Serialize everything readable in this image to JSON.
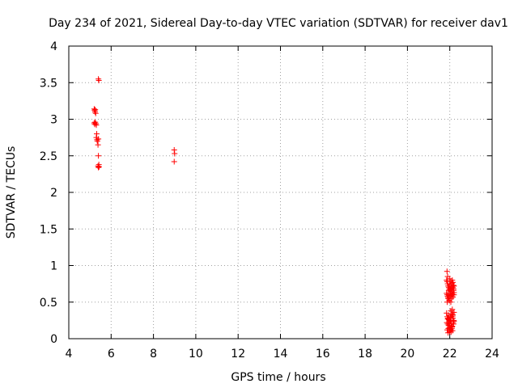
{
  "chart_data": {
    "type": "scatter",
    "title": "Day 234 of 2021, Sidereal Day-to-day VTEC variation (SDTVAR) for receiver dav1",
    "xlabel": "GPS time / hours",
    "ylabel": "SDTVAR / TECUs",
    "xlim": [
      4,
      24
    ],
    "ylim": [
      0,
      4
    ],
    "xticks": [
      4,
      6,
      8,
      10,
      12,
      14,
      16,
      18,
      20,
      22,
      24
    ],
    "yticks": [
      0,
      0.5,
      1,
      1.5,
      2,
      2.5,
      3,
      3.5,
      4
    ],
    "ytick_labels": [
      "0",
      "0.5",
      "1",
      "1.5",
      "2",
      "2.5",
      "3",
      "3.5",
      "4"
    ],
    "grid": true,
    "marker": "+",
    "color": "#ff0000",
    "series": [
      {
        "name": "dav1",
        "x": [
          5.2,
          5.22,
          5.24,
          5.25,
          5.27,
          5.2,
          5.22,
          5.25,
          5.28,
          5.3,
          5.32,
          5.3,
          5.33,
          5.35,
          5.4,
          5.38,
          5.4,
          5.42,
          5.38,
          5.4,
          5.43,
          5.4,
          5.42,
          8.98,
          9.0,
          8.98,
          21.85,
          21.88,
          21.9,
          21.92,
          21.95,
          21.98,
          22.0,
          22.02,
          22.05,
          22.08,
          22.1,
          22.12,
          22.15,
          22.18,
          22.2,
          21.85,
          21.88,
          21.9,
          21.93,
          21.95,
          21.98,
          22.0,
          22.03,
          22.05,
          22.08,
          22.1,
          22.13,
          22.15,
          22.18,
          22.2,
          21.87,
          21.9,
          21.95,
          22.0,
          22.05,
          22.1,
          22.15,
          22.2,
          21.88,
          21.92,
          21.97,
          22.02,
          22.07,
          22.12,
          22.17,
          21.85,
          21.88,
          21.92,
          21.95,
          22.0,
          22.05,
          22.08,
          22.12,
          22.15,
          22.2,
          21.9,
          21.96,
          22.02,
          22.1,
          22.14,
          21.86,
          21.9,
          21.94,
          21.98,
          22.03,
          22.07,
          22.11,
          22.16,
          22.19,
          21.88,
          21.93,
          21.99,
          22.04,
          22.09,
          22.13,
          22.0,
          22.05,
          21.95,
          22.1,
          22.15,
          22.18,
          22.2,
          21.92,
          22.06,
          22.12
        ],
        "y": [
          3.14,
          3.12,
          3.1,
          3.13,
          3.08,
          2.95,
          2.93,
          2.96,
          2.94,
          2.92,
          2.8,
          2.75,
          2.72,
          2.7,
          2.73,
          2.65,
          2.5,
          2.38,
          2.36,
          2.34,
          2.35,
          3.55,
          3.53,
          2.58,
          2.53,
          2.42,
          0.8,
          0.78,
          0.75,
          0.72,
          0.7,
          0.68,
          0.82,
          0.65,
          0.78,
          0.62,
          0.76,
          0.8,
          0.7,
          0.66,
          0.72,
          0.62,
          0.6,
          0.58,
          0.55,
          0.6,
          0.52,
          0.58,
          0.62,
          0.5,
          0.55,
          0.64,
          0.6,
          0.57,
          0.68,
          0.63,
          0.92,
          0.85,
          0.66,
          0.74,
          0.69,
          0.71,
          0.77,
          0.6,
          0.5,
          0.56,
          0.53,
          0.67,
          0.59,
          0.61,
          0.73,
          0.35,
          0.3,
          0.28,
          0.32,
          0.25,
          0.38,
          0.3,
          0.4,
          0.33,
          0.36,
          0.27,
          0.22,
          0.29,
          0.34,
          0.31,
          0.22,
          0.2,
          0.18,
          0.15,
          0.24,
          0.2,
          0.16,
          0.22,
          0.25,
          0.12,
          0.14,
          0.1,
          0.13,
          0.16,
          0.11,
          0.18,
          0.12,
          0.26,
          0.14,
          0.28,
          0.2,
          0.24,
          0.08,
          0.09,
          0.17
        ]
      }
    ]
  }
}
